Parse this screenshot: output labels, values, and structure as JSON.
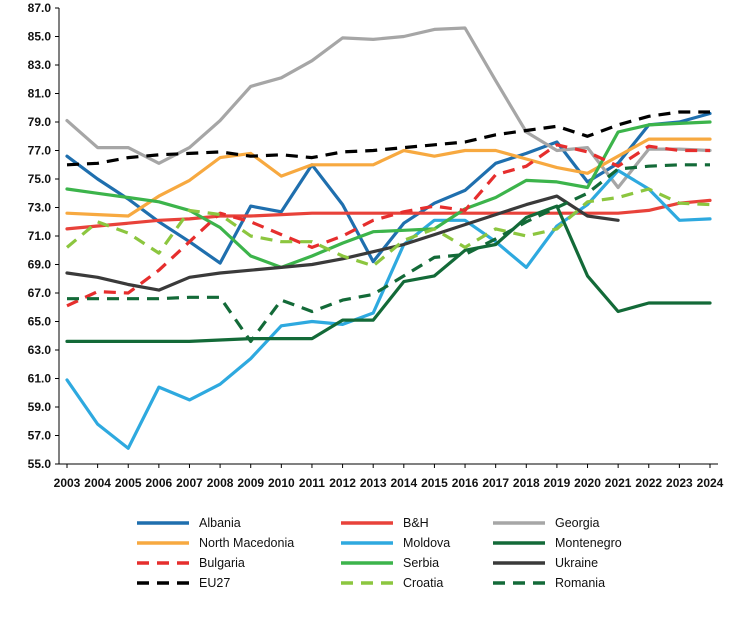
{
  "chart_data": {
    "type": "line",
    "title": "",
    "xlabel": "",
    "ylabel": "",
    "ylim": [
      55.0,
      87.0
    ],
    "yticks": [
      "55.0",
      "57.0",
      "59.0",
      "61.0",
      "63.0",
      "65.0",
      "67.0",
      "69.0",
      "71.0",
      "73.0",
      "75.0",
      "77.0",
      "79.0",
      "81.0",
      "83.0",
      "85.0",
      "87.0"
    ],
    "grid": false,
    "legend_position": "bottom",
    "x": [
      "2003",
      "2004",
      "2005",
      "2006",
      "2007",
      "2008",
      "2009",
      "2010",
      "2011",
      "2012",
      "2013",
      "2014",
      "2015",
      "2016",
      "2017",
      "2018",
      "2019",
      "2020",
      "2021",
      "2022",
      "2023",
      "2024"
    ],
    "series": [
      {
        "name": "Albania",
        "color": "#1f6fae",
        "dash": "solid",
        "values": [
          76.6,
          75.0,
          73.6,
          72.0,
          70.6,
          69.1,
          73.1,
          72.7,
          76.0,
          73.2,
          69.2,
          71.9,
          73.3,
          74.2,
          76.1,
          76.8,
          77.6,
          74.8,
          76.1,
          78.8,
          79.0,
          79.6
        ]
      },
      {
        "name": "B&H",
        "color": "#e8423a",
        "dash": "solid",
        "values": [
          71.5,
          71.7,
          71.9,
          72.1,
          72.2,
          72.4,
          72.4,
          72.5,
          72.6,
          72.6,
          72.6,
          72.6,
          72.6,
          72.6,
          72.6,
          72.6,
          72.6,
          72.6,
          72.6,
          72.8,
          73.3,
          73.5
        ]
      },
      {
        "name": "Georgia",
        "color": "#a6a6a6",
        "dash": "solid",
        "values": [
          79.1,
          77.2,
          77.2,
          76.1,
          77.2,
          79.1,
          81.5,
          82.1,
          83.3,
          84.9,
          84.8,
          85.0,
          85.5,
          85.6,
          81.9,
          78.3,
          77.0,
          77.2,
          74.4,
          77.1,
          77.1,
          77.0
        ]
      },
      {
        "name": "North Macedonia",
        "color": "#f7a940",
        "dash": "solid",
        "values": [
          72.6,
          72.5,
          72.4,
          73.8,
          74.9,
          76.5,
          76.8,
          75.2,
          76.0,
          76.0,
          76.0,
          77.0,
          76.6,
          77.0,
          77.0,
          76.4,
          75.8,
          75.4,
          76.6,
          77.8,
          77.8,
          77.8
        ]
      },
      {
        "name": "Moldova",
        "color": "#2ea9df",
        "dash": "solid",
        "values": [
          60.9,
          57.8,
          56.1,
          60.4,
          59.5,
          60.6,
          62.4,
          64.7,
          65.0,
          64.8,
          65.6,
          70.4,
          72.1,
          72.1,
          70.6,
          68.8,
          71.7,
          73.2,
          75.6,
          74.3,
          72.1,
          72.2
        ]
      },
      {
        "name": "Montenegro",
        "color": "#136a38",
        "dash": "solid",
        "values": [
          63.6,
          63.6,
          63.6,
          63.6,
          63.6,
          63.7,
          63.8,
          63.8,
          63.8,
          65.1,
          65.1,
          67.8,
          68.2,
          70.0,
          70.4,
          72.3,
          73.1,
          68.2,
          65.7,
          66.3,
          66.3,
          66.3
        ]
      },
      {
        "name": "Bulgaria",
        "color": "#e62e2d",
        "dash": "dashed",
        "values": [
          66.1,
          67.1,
          67.0,
          68.6,
          70.6,
          72.6,
          72.0,
          71.1,
          70.2,
          71.0,
          72.1,
          72.7,
          73.1,
          72.8,
          75.3,
          75.9,
          77.4,
          76.9,
          75.9,
          77.3,
          77.0,
          77.0
        ]
      },
      {
        "name": "Serbia",
        "color": "#3cb44b",
        "dash": "solid",
        "values": [
          74.3,
          74.0,
          73.7,
          73.4,
          72.8,
          71.6,
          69.6,
          68.8,
          69.6,
          70.5,
          71.3,
          71.4,
          71.5,
          72.9,
          73.7,
          74.9,
          74.8,
          74.4,
          78.3,
          78.8,
          78.9,
          79.0
        ]
      },
      {
        "name": "Ukraine",
        "color": "#3a3a3a",
        "dash": "solid",
        "values": [
          68.4,
          68.1,
          67.6,
          67.2,
          68.1,
          68.4,
          68.6,
          68.8,
          69.0,
          69.4,
          69.9,
          70.4,
          71.1,
          71.8,
          72.5,
          73.2,
          73.8,
          72.4,
          72.1,
          null,
          null,
          null
        ]
      },
      {
        "name": "EU27",
        "color": "#000000",
        "dash": "dashed",
        "values": [
          76.0,
          76.1,
          76.5,
          76.7,
          76.8,
          76.9,
          76.6,
          76.7,
          76.5,
          76.9,
          77.0,
          77.2,
          77.4,
          77.6,
          78.1,
          78.4,
          78.7,
          78.0,
          78.8,
          79.4,
          79.7,
          79.7
        ]
      },
      {
        "name": "Croatia",
        "color": "#8cc63f",
        "dash": "dashed",
        "values": [
          70.2,
          72.0,
          71.2,
          69.8,
          72.8,
          72.5,
          71.0,
          70.6,
          70.6,
          69.6,
          68.9,
          70.7,
          71.5,
          70.2,
          71.5,
          71.0,
          71.5,
          73.4,
          73.7,
          74.3,
          73.3,
          73.2
        ]
      },
      {
        "name": "Romania",
        "color": "#136a38",
        "dash": "dashed",
        "values": [
          66.6,
          66.6,
          66.6,
          66.6,
          66.7,
          66.7,
          63.6,
          66.5,
          65.7,
          66.5,
          66.9,
          68.2,
          69.5,
          69.7,
          70.8,
          72.0,
          73.0,
          74.0,
          75.7,
          75.9,
          76.0,
          76.0
        ]
      }
    ],
    "legend_order": [
      "Albania",
      "B&H",
      "Georgia",
      "North Macedonia",
      "Moldova",
      "Montenegro",
      "Bulgaria",
      "Serbia",
      "Ukraine",
      "EU27",
      "Croatia",
      "Romania"
    ]
  }
}
